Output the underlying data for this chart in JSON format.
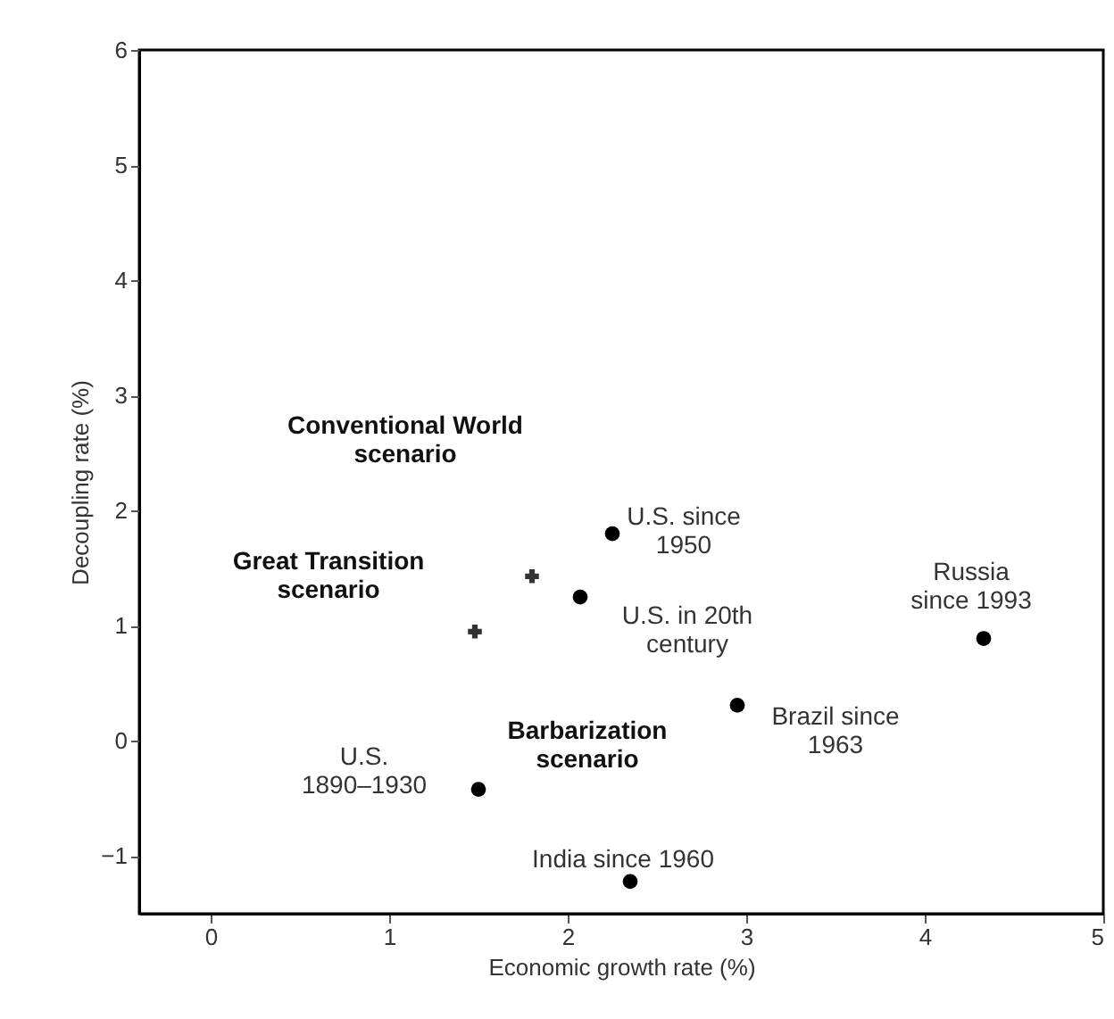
{
  "chart_data": {
    "type": "scatter",
    "xlabel": "Economic growth rate (%)",
    "ylabel": "Decoupling rate (%)",
    "xlim": [
      -0.4,
      5
    ],
    "ylim": [
      -1.5,
      6
    ],
    "xticks": [
      0,
      1,
      2,
      3,
      4,
      5
    ],
    "yticks": [
      -1,
      0,
      1,
      2,
      3,
      4,
      5,
      6
    ],
    "grid": false,
    "series": [
      {
        "marker": "circle",
        "color": "#000000",
        "x": [
          2.25,
          2.07,
          4.33,
          2.95,
          1.5,
          2.35
        ],
        "values": [
          1.8,
          1.25,
          0.89,
          0.31,
          -0.42,
          -1.22
        ]
      },
      {
        "marker": "cross",
        "color": "#333333",
        "x": [
          1.8,
          1.48
        ],
        "values": [
          1.43,
          0.95
        ]
      }
    ],
    "annotations": [
      {
        "text": "U.S. since\n1950",
        "x": 2.25,
        "y": 1.8
      },
      {
        "text": "U.S. in 20th\ncentury",
        "x": 2.07,
        "y": 1.25
      },
      {
        "text": "Russia\nsince 1993",
        "x": 4.33,
        "y": 0.89
      },
      {
        "text": "Brazil since\n1963",
        "x": 2.95,
        "y": 0.31
      },
      {
        "text": "U.S.\n1890–1930",
        "x": 1.5,
        "y": -0.42
      },
      {
        "text": "India since 1960",
        "x": 2.35,
        "y": -1.22
      },
      "Conventional World\nscenario",
      "Great Transition\nscenario",
      "Barbarization\nscenario"
    ]
  }
}
